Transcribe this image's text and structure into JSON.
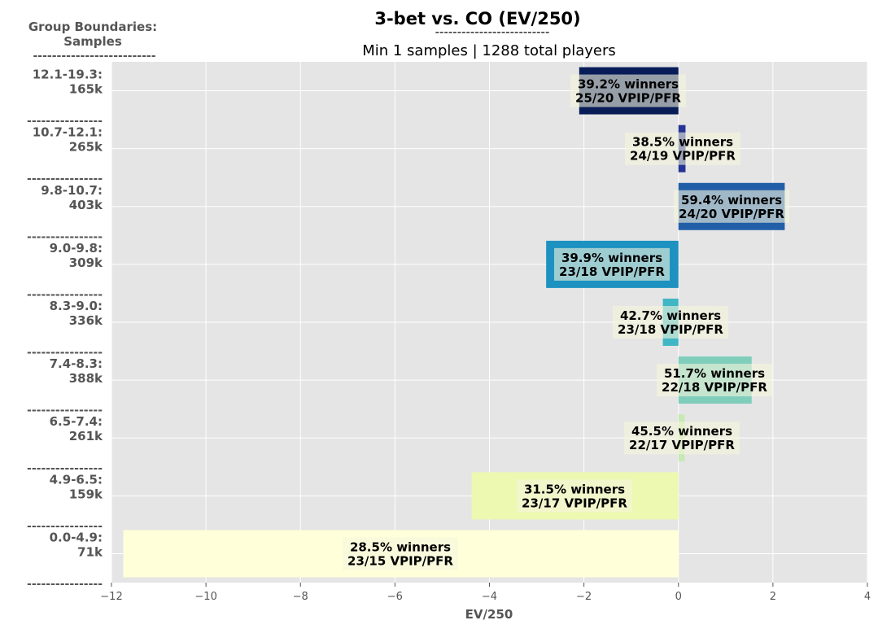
{
  "header": {
    "title": "3-bet vs. CO (EV/250)",
    "title_rule": "--------------------------",
    "subtitle": "Min 1 samples | 1288 total players",
    "boundary_heading_line1": "Group Boundaries:",
    "boundary_heading_line2": "Samples",
    "boundary_heading_rule": "--------------------------",
    "group_divider": "----------------"
  },
  "chart_data": {
    "type": "bar",
    "orientation": "horizontal",
    "title": "3-bet vs. CO (EV/250)",
    "subtitle": "Min 1 samples | 1288 total players",
    "xlabel": "EV/250",
    "xlim": [
      -12,
      4
    ],
    "xticks": [
      -12,
      -10,
      -8,
      -6,
      -4,
      -2,
      0,
      2,
      4
    ],
    "xtick_labels": [
      "−12",
      "−10",
      "−8",
      "−6",
      "−4",
      "−2",
      "0",
      "2",
      "4"
    ],
    "grid": true,
    "groups": [
      {
        "range": "12.1-19.3:",
        "samples": "165k",
        "value": -2.1,
        "color": "#081d58",
        "winners_label": "39.2% winners",
        "vpip_label": "25/20 VPIP/PFR"
      },
      {
        "range": "10.7-12.1:",
        "samples": "265k",
        "value": 0.15,
        "color": "#253494",
        "winners_label": "38.5% winners",
        "vpip_label": "24/19 VPIP/PFR"
      },
      {
        "range": "9.8-10.7:",
        "samples": "403k",
        "value": 2.25,
        "color": "#225ea8",
        "winners_label": "59.4% winners",
        "vpip_label": "24/20 VPIP/PFR"
      },
      {
        "range": "9.0-9.8:",
        "samples": "309k",
        "value": -2.8,
        "color": "#1d91c0",
        "winners_label": "39.9% winners",
        "vpip_label": "23/18 VPIP/PFR"
      },
      {
        "range": "8.3-9.0:",
        "samples": "336k",
        "value": -0.33,
        "color": "#41b6c4",
        "winners_label": "42.7% winners",
        "vpip_label": "23/18 VPIP/PFR"
      },
      {
        "range": "7.4-8.3:",
        "samples": "388k",
        "value": 1.55,
        "color": "#7fcdbb",
        "winners_label": "51.7% winners",
        "vpip_label": "22/18 VPIP/PFR"
      },
      {
        "range": "6.5-7.4:",
        "samples": "261k",
        "value": 0.13,
        "color": "#c7e9b4",
        "winners_label": "45.5% winners",
        "vpip_label": "22/17 VPIP/PFR"
      },
      {
        "range": "4.9-6.5:",
        "samples": "159k",
        "value": -4.38,
        "color": "#edf8b1",
        "winners_label": "31.5% winners",
        "vpip_label": "23/17 VPIP/PFR"
      },
      {
        "range": "0.0-4.9:",
        "samples": "71k",
        "value": -11.75,
        "color": "#ffffd9",
        "winners_label": "28.5% winners",
        "vpip_label": "23/15 VPIP/PFR"
      }
    ]
  }
}
